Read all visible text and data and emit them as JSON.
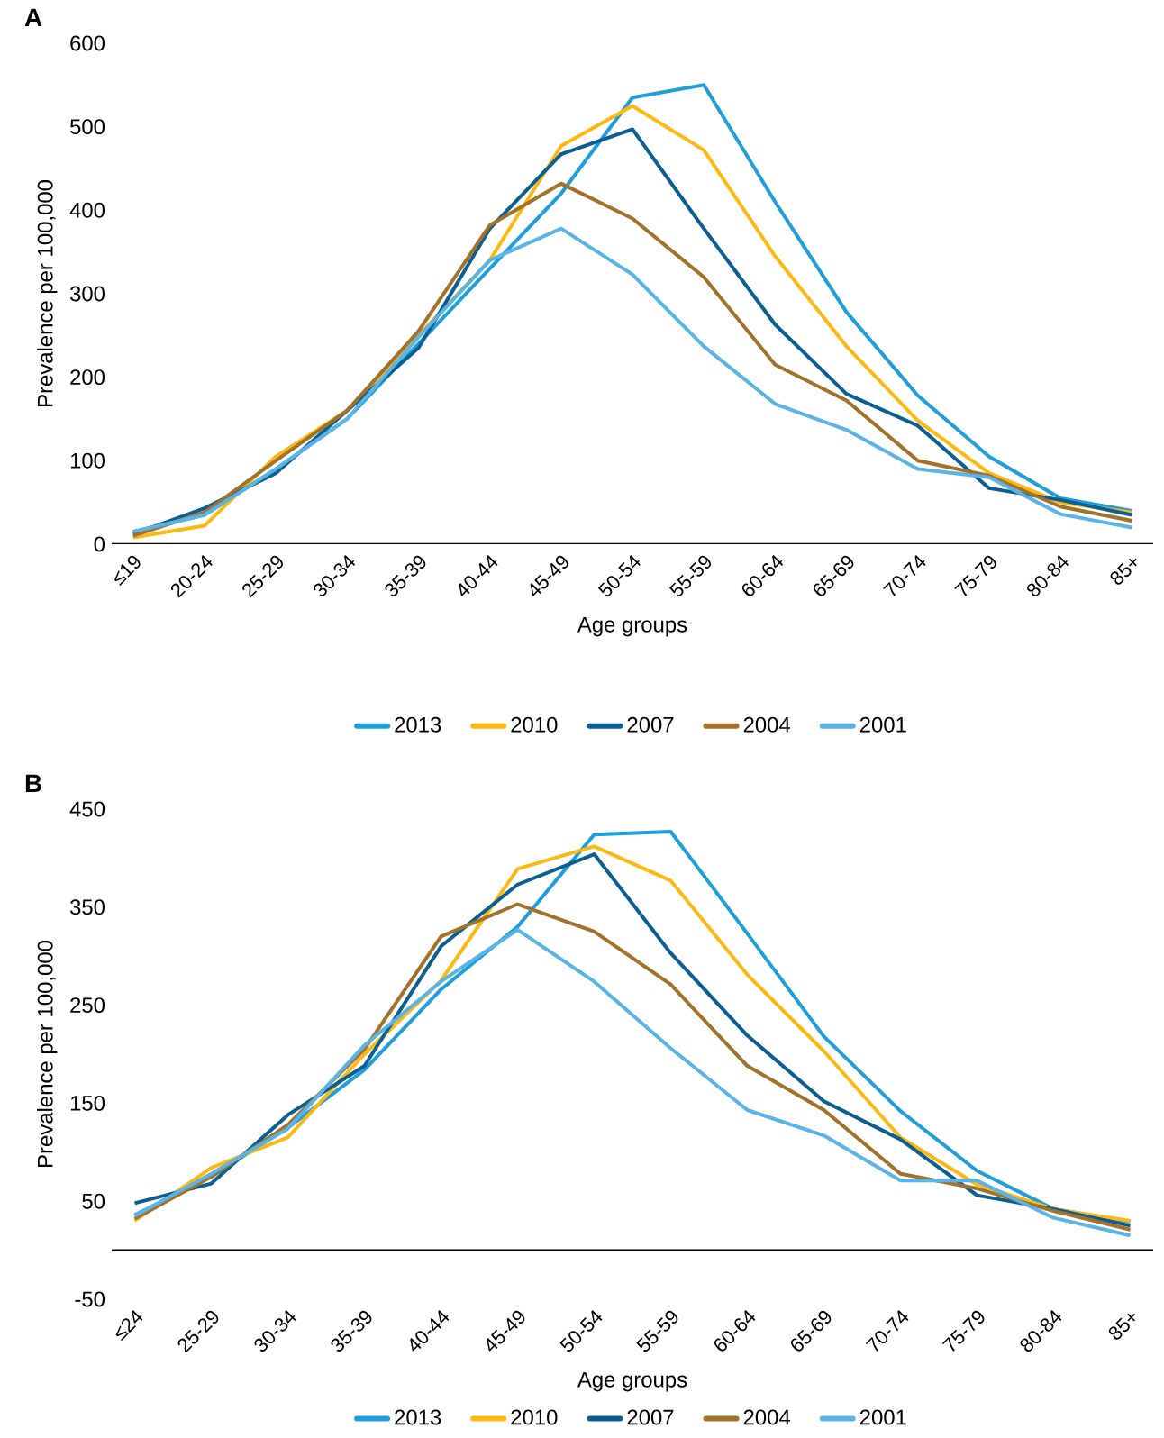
{
  "chart_data": [
    {
      "type": "line",
      "title": "A",
      "xlabel": "Age groups",
      "ylabel": "Prevalence per 100,000",
      "categories": [
        "≤19",
        "20-24",
        "25-29",
        "30-34",
        "35-39",
        "40-44",
        "45-49",
        "50-54",
        "55-59",
        "60-64",
        "65-69",
        "70-74",
        "75-79",
        "80-84",
        "85+"
      ],
      "ylim": [
        0,
        600
      ],
      "yticks": [
        0,
        100,
        200,
        300,
        400,
        500,
        600
      ],
      "grid": false,
      "legend": "bottom",
      "marker": "none",
      "line_style": "solid",
      "series": [
        {
          "name": "2013",
          "color": "#1f9ed9",
          "values": [
            15,
            35,
            90,
            150,
            240,
            330,
            420,
            535,
            550,
            410,
            278,
            178,
            105,
            55,
            40
          ]
        },
        {
          "name": "2010",
          "color": "#fdb913",
          "values": [
            8,
            22,
            105,
            160,
            250,
            340,
            477,
            525,
            472,
            345,
            237,
            148,
            85,
            50,
            38
          ]
        },
        {
          "name": "2007",
          "color": "#0b5e91",
          "values": [
            12,
            43,
            85,
            160,
            235,
            378,
            467,
            497,
            378,
            263,
            180,
            142,
            67,
            53,
            35
          ]
        },
        {
          "name": "2004",
          "color": "#a2722b",
          "values": [
            10,
            38,
            100,
            160,
            255,
            382,
            432,
            390,
            320,
            215,
            172,
            100,
            82,
            45,
            28
          ]
        },
        {
          "name": "2001",
          "color": "#5ab4e5",
          "values": [
            15,
            35,
            90,
            150,
            248,
            340,
            378,
            323,
            237,
            168,
            137,
            90,
            80,
            36,
            20
          ]
        }
      ]
    },
    {
      "type": "line",
      "title": "B",
      "xlabel": "Age groups",
      "ylabel": "Prevalence per 100,000",
      "categories": [
        "≤24",
        "25-29",
        "30-34",
        "35-39",
        "40-44",
        "45-49",
        "50-54",
        "55-59",
        "60-64",
        "65-69",
        "70-74",
        "75-79",
        "80-84",
        "85+"
      ],
      "ylim": [
        -50,
        450
      ],
      "yticks": [
        -50,
        50,
        150,
        250,
        350,
        450
      ],
      "grid": false,
      "legend": "bottom",
      "marker": "none",
      "line_style": "solid",
      "series": [
        {
          "name": "2013",
          "color": "#1f9ed9",
          "values": [
            36,
            75,
            125,
            184,
            266,
            330,
            424,
            427,
            323,
            218,
            142,
            81,
            42,
            29
          ]
        },
        {
          "name": "2010",
          "color": "#fdb913",
          "values": [
            30,
            84,
            115,
            200,
            275,
            389,
            412,
            377,
            281,
            203,
            115,
            67,
            42,
            30
          ]
        },
        {
          "name": "2007",
          "color": "#0b5e91",
          "values": [
            48,
            68,
            138,
            188,
            310,
            373,
            404,
            303,
            219,
            152,
            113,
            56,
            42,
            25
          ]
        },
        {
          "name": "2004",
          "color": "#a2722b",
          "values": [
            32,
            75,
            128,
            205,
            320,
            353,
            325,
            271,
            188,
            143,
            78,
            63,
            40,
            21
          ]
        },
        {
          "name": "2001",
          "color": "#5ab4e5",
          "values": [
            35,
            78,
            124,
            209,
            274,
            327,
            274,
            206,
            143,
            117,
            71,
            71,
            33,
            15
          ]
        }
      ]
    }
  ]
}
